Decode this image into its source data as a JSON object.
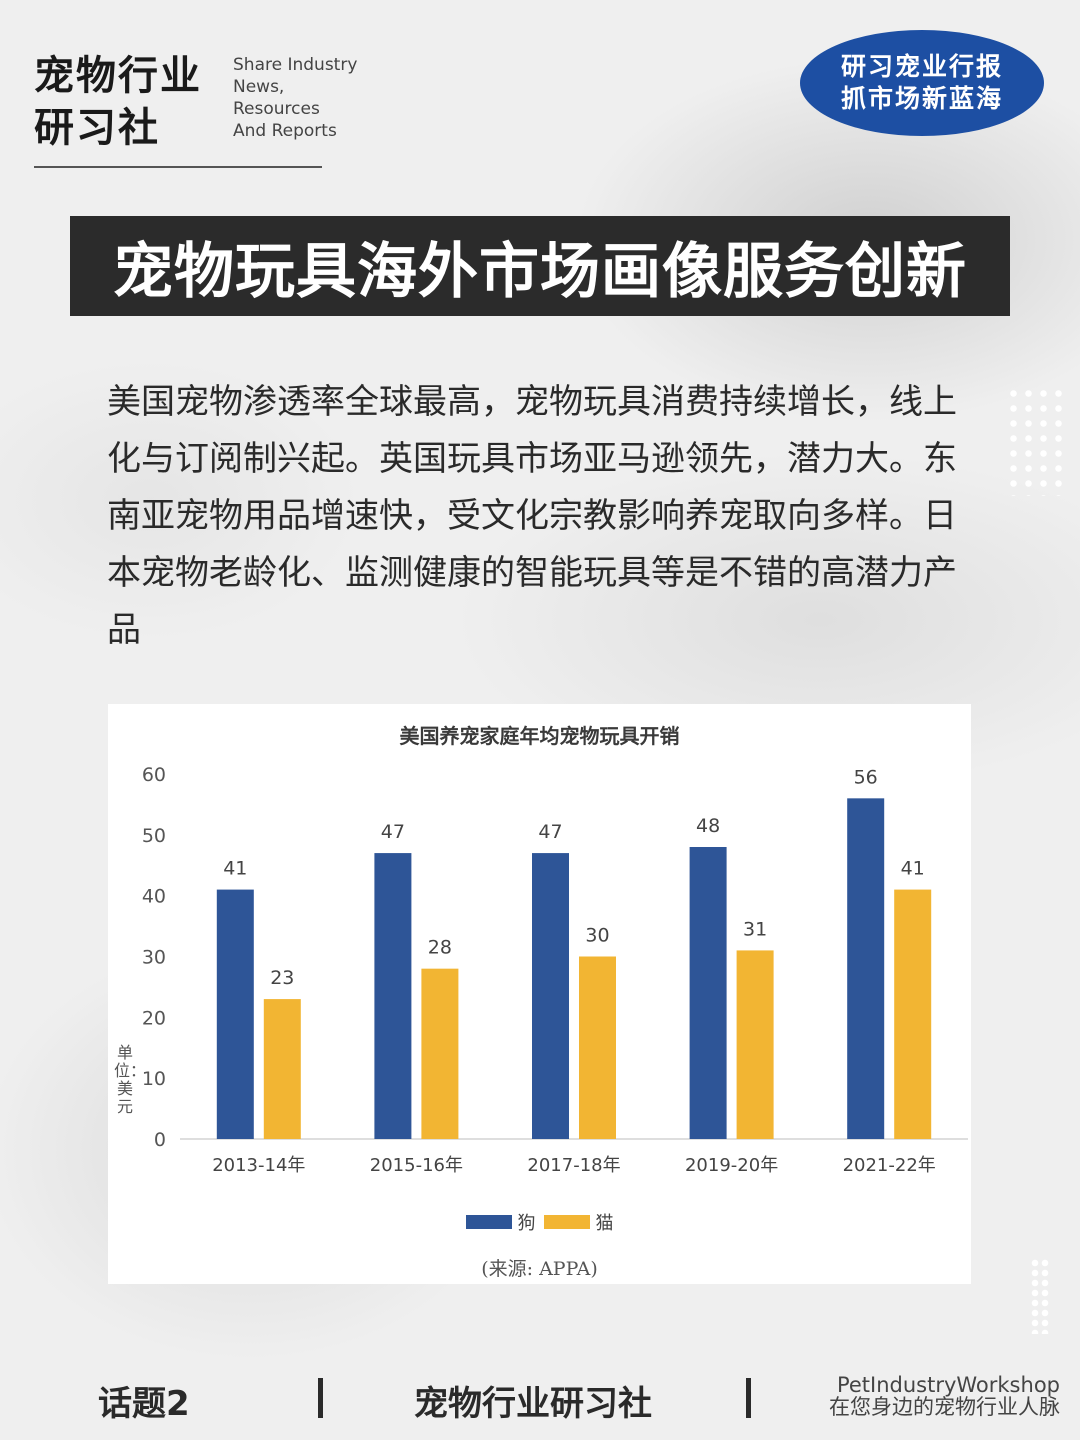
{
  "header": {
    "brand_cn_line1": "宠物行业",
    "brand_cn_line2": "研习社",
    "brand_en_lines": [
      "Share Industry",
      "News,",
      "Resources",
      "And Reports"
    ],
    "badge_line1": "研习宠业行报",
    "badge_line2": "抓市场新蓝海"
  },
  "headline": "宠物玩具海外市场画像服务创新",
  "intro": "美国宠物渗透率全球最高，宠物玩具消费持续增长，线上化与订阅制兴起。英国玩具市场亚马逊领先，潜力大。东南亚宠物用品增速快，受文化宗教影响养宠取向多样。日本宠物老龄化、监测健康的智能玩具等是不错的高潜力产品",
  "chart_data": {
    "type": "bar",
    "title": "美国养宠家庭年均宠物玩具开销",
    "ylabel": "单位：美元",
    "categories": [
      "2013-14年",
      "2015-16年",
      "2017-18年",
      "2019-20年",
      "2021-22年"
    ],
    "series": [
      {
        "name": "狗",
        "values": [
          41,
          47,
          47,
          48,
          56
        ],
        "color": "#2e5597"
      },
      {
        "name": "猫",
        "values": [
          23,
          28,
          30,
          31,
          41
        ],
        "color": "#f2b533"
      }
    ],
    "ylim": [
      0,
      60
    ],
    "yticks": [
      "0",
      "10",
      "20",
      "30",
      "40",
      "50",
      "60"
    ],
    "grid": false,
    "legend": "bottom",
    "source": "(来源: APPA)"
  },
  "footer": {
    "topic": "话题2",
    "name": "宠物行业研习社",
    "en": "PetIndustryWorkshop",
    "tagline": "在您身边的宠物行业人脉"
  }
}
